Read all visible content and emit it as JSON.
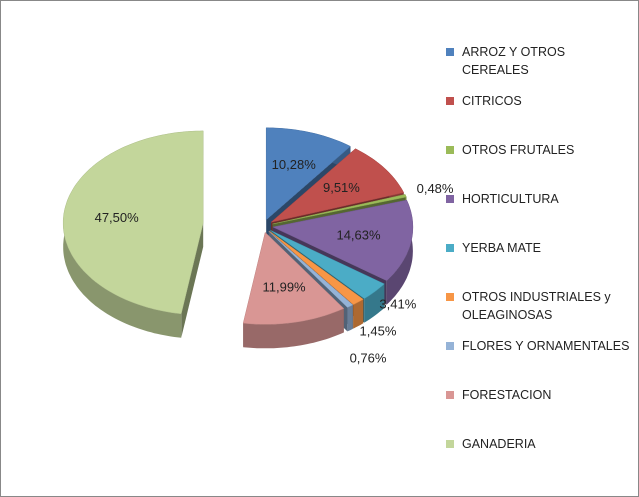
{
  "chart_data": {
    "type": "pie",
    "categories": [
      "ARROZ Y OTROS CEREALES",
      "CITRICOS",
      "OTROS FRUTALES",
      "HORTICULTURA",
      "YERBA MATE",
      "OTROS INDUSTRIALES y OLEAGINOSAS",
      "FLORES Y ORNAMENTALES",
      "FORESTACION",
      "GANADERIA"
    ],
    "values": [
      10.28,
      9.51,
      0.48,
      14.63,
      3.41,
      1.45,
      0.76,
      11.99,
      47.5
    ],
    "value_labels": [
      "10,28%",
      "9,51%",
      "0,48%",
      "14,63%",
      "3,41%",
      "1,45%",
      "0,76%",
      "11,99%",
      "47,50%"
    ],
    "colors": [
      "#4f81bd",
      "#c0504d",
      "#9bbb59",
      "#8064a2",
      "#4bacc6",
      "#f79646",
      "#95b3d7",
      "#d99694",
      "#c3d69b"
    ],
    "legend": "right"
  }
}
